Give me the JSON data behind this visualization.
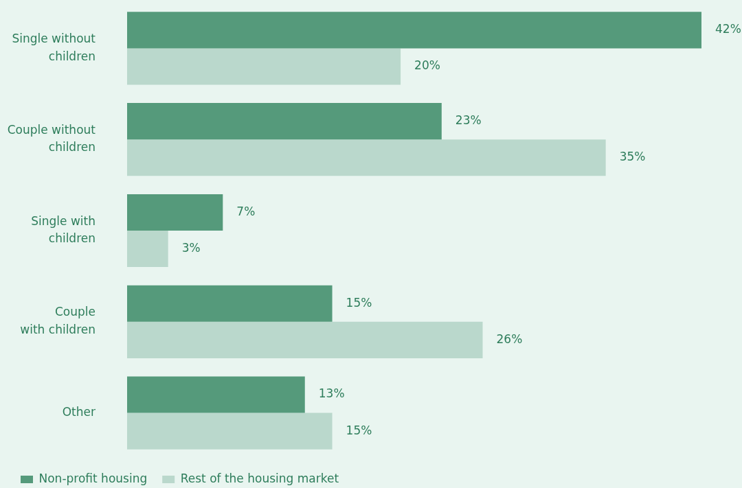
{
  "chart_data": {
    "type": "bar",
    "orientation": "horizontal",
    "categories": [
      "Single without\nchildren",
      "Couple without\nchildren",
      "Single with\nchildren",
      "Couple\nwith children",
      "Other"
    ],
    "series": [
      {
        "name": "Non-profit housing",
        "color": "#559a7b",
        "values": [
          42,
          23,
          7,
          15,
          13
        ],
        "value_labels": [
          "42%",
          "23%",
          "7%",
          "15%",
          "13%"
        ]
      },
      {
        "name": "Rest of the housing market",
        "color": "#bad8cc",
        "values": [
          20,
          35,
          3,
          26,
          15
        ],
        "value_labels": [
          "20%",
          "35%",
          "3%",
          "26%",
          "15%"
        ]
      }
    ],
    "legend": "bottom left"
  }
}
